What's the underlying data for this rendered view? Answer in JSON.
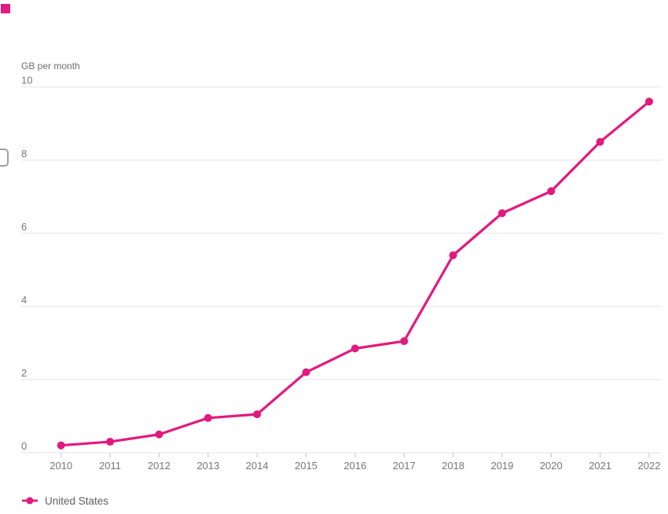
{
  "chart_data": {
    "type": "line",
    "title": "",
    "unit_label": "GB per month",
    "x_labels": [
      "2010",
      "2011",
      "2012",
      "2013",
      "2014",
      "2015",
      "2016",
      "2017",
      "2018",
      "2019",
      "2020",
      "2021",
      "2022"
    ],
    "series": [
      {
        "name": "United States",
        "color": "#e3197d",
        "values": [
          0.2,
          0.3,
          0.5,
          0.95,
          1.05,
          2.2,
          2.85,
          3.05,
          5.4,
          6.55,
          7.15,
          8.5,
          9.6
        ]
      }
    ],
    "yticks": [
      0,
      2,
      4,
      6,
      8,
      10
    ],
    "ylim": [
      0,
      10
    ],
    "grid": "horizontal",
    "legend_position": "bottom-left"
  },
  "legend": {
    "items": [
      {
        "label": "United States",
        "color": "#e3197d"
      }
    ]
  },
  "colors": {
    "accent": "#e3197d",
    "gridline": "#e7e7e7",
    "tick_mark": "#cccccc",
    "axis_text": "#757575",
    "unit_text": "#6f6f6f",
    "legend_text": "#606060",
    "background": "#ffffff"
  }
}
